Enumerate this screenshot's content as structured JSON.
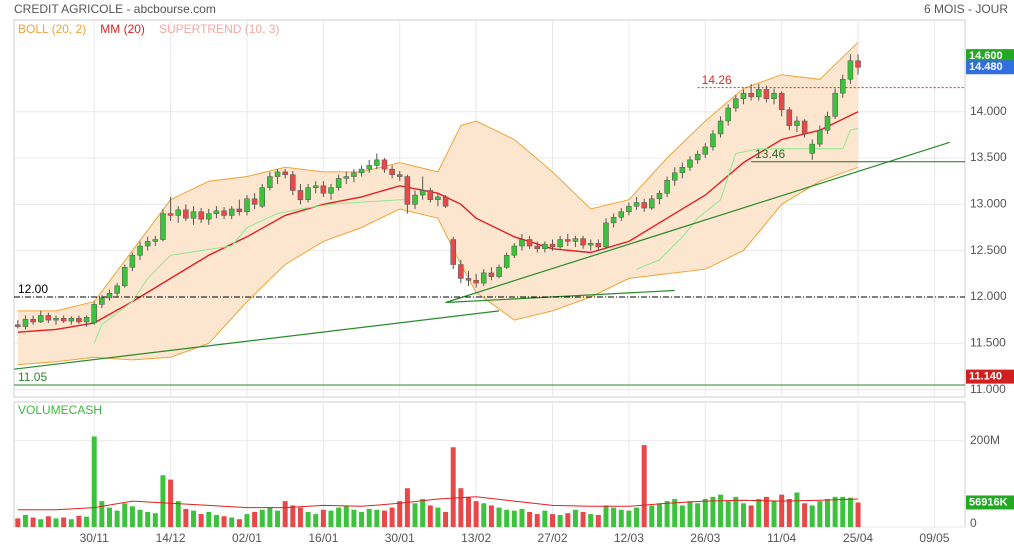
{
  "chart_data": [
    {
      "type": "candlestick",
      "title": "CREDIT AGRICOLE - abcbourse.com",
      "subtitle": "6 MOIS - JOUR",
      "up_color": "#3cc23c",
      "down_color": "#e84848",
      "xlim": [
        -0.5,
        124
      ],
      "xticks": [
        {
          "value": 10,
          "label": "30/11"
        },
        {
          "value": 20,
          "label": "14/12"
        },
        {
          "value": 30,
          "label": "02/01"
        },
        {
          "value": 40,
          "label": "16/01"
        },
        {
          "value": 50,
          "label": "30/01"
        },
        {
          "value": 60,
          "label": "13/02"
        },
        {
          "value": 70,
          "label": "27/02"
        },
        {
          "value": 80,
          "label": "12/03"
        },
        {
          "value": 90,
          "label": "26/03"
        },
        {
          "value": 100,
          "label": "11/04"
        },
        {
          "value": 110,
          "label": "25/04"
        },
        {
          "value": 120,
          "label": "09/05"
        }
      ],
      "ylim": [
        10.92,
        14.99
      ],
      "yticks": [
        {
          "value": 11,
          "label": "11.000"
        },
        {
          "value": 11.5,
          "label": "11.500"
        },
        {
          "value": 12,
          "label": "12.000"
        },
        {
          "value": 12.5,
          "label": "12.500"
        },
        {
          "value": 13,
          "label": "13.000"
        },
        {
          "value": 13.5,
          "label": "13.500"
        },
        {
          "value": 14,
          "label": "14.000"
        }
      ],
      "grid": true,
      "open": [
        11.7,
        11.68,
        11.76,
        11.73,
        11.8,
        11.75,
        11.77,
        11.74,
        11.77,
        11.73,
        11.72,
        11.92,
        11.99,
        12.04,
        12.12,
        12.32,
        12.45,
        12.55,
        12.6,
        12.62,
        12.9,
        12.88,
        12.94,
        12.85,
        12.92,
        12.84,
        12.9,
        12.93,
        12.88,
        12.95,
        12.92,
        13.06,
        12.98,
        13.18,
        13.3,
        13.35,
        13.32,
        13.15,
        13.05,
        13.18,
        13.2,
        13.12,
        13.18,
        13.28,
        13.3,
        13.34,
        13.38,
        13.42,
        13.48,
        13.38,
        13.32,
        13.3,
        13.0,
        13.1,
        13.15,
        13.05,
        13.08,
        12.62,
        12.35,
        12.2,
        12.18,
        12.15,
        12.26,
        12.22,
        12.32,
        12.45,
        12.55,
        12.62,
        12.55,
        12.52,
        12.57,
        12.54,
        12.62,
        12.6,
        12.63,
        12.56,
        12.58,
        12.54,
        12.8,
        12.86,
        12.92,
        12.98,
        13.02,
        12.96,
        13.06,
        13.12,
        13.26,
        13.34,
        13.4,
        13.48,
        13.54,
        13.62,
        13.76,
        13.9,
        14.04,
        14.14,
        14.2,
        14.16,
        14.24,
        14.14,
        14.2,
        14.02,
        13.85,
        13.9,
        13.55,
        13.65,
        13.8,
        13.95,
        14.2,
        14.35,
        14.55
      ],
      "high": [
        11.75,
        11.8,
        11.8,
        11.85,
        11.83,
        11.8,
        11.8,
        11.79,
        11.8,
        11.8,
        11.95,
        12.02,
        12.08,
        12.15,
        12.35,
        12.48,
        12.6,
        12.65,
        12.66,
        12.95,
        13.08,
        12.98,
        13.0,
        12.98,
        12.96,
        12.95,
        12.98,
        12.97,
        12.98,
        13.05,
        13.1,
        13.12,
        13.22,
        13.35,
        13.38,
        13.38,
        13.36,
        13.22,
        13.22,
        13.25,
        13.25,
        13.22,
        13.32,
        13.35,
        13.38,
        13.42,
        13.48,
        13.55,
        13.5,
        13.42,
        13.36,
        13.32,
        13.15,
        13.3,
        13.18,
        13.12,
        13.1,
        12.65,
        12.4,
        12.28,
        12.25,
        12.3,
        12.32,
        12.35,
        12.48,
        12.58,
        12.68,
        12.66,
        12.6,
        12.6,
        12.62,
        12.66,
        12.68,
        12.66,
        12.66,
        12.62,
        12.62,
        12.85,
        12.9,
        12.96,
        13.02,
        13.08,
        13.06,
        13.1,
        13.15,
        13.3,
        13.4,
        13.45,
        13.52,
        13.58,
        13.66,
        13.8,
        13.95,
        14.08,
        14.18,
        14.24,
        14.3,
        14.3,
        14.28,
        14.25,
        14.22,
        14.05,
        13.95,
        13.92,
        13.7,
        13.85,
        14.0,
        14.25,
        14.4,
        14.62,
        14.62
      ],
      "low": [
        11.66,
        11.65,
        11.7,
        11.72,
        11.72,
        11.7,
        11.72,
        11.7,
        11.71,
        11.68,
        11.7,
        11.88,
        11.96,
        12.0,
        12.1,
        12.28,
        12.4,
        12.5,
        12.55,
        12.6,
        12.82,
        12.8,
        12.82,
        12.78,
        12.8,
        12.78,
        12.85,
        12.84,
        12.84,
        12.88,
        12.88,
        12.95,
        12.96,
        13.15,
        13.22,
        13.28,
        13.1,
        13.0,
        13.02,
        13.12,
        13.08,
        13.05,
        13.15,
        13.22,
        13.24,
        13.3,
        13.34,
        13.38,
        13.34,
        13.28,
        13.25,
        12.9,
        12.95,
        13.05,
        13.02,
        12.98,
        12.96,
        12.3,
        12.15,
        12.12,
        12.1,
        12.12,
        12.18,
        12.2,
        12.3,
        12.42,
        12.5,
        12.52,
        12.48,
        12.48,
        12.5,
        12.52,
        12.55,
        12.54,
        12.52,
        12.5,
        12.5,
        12.52,
        12.75,
        12.82,
        12.88,
        12.94,
        12.92,
        12.94,
        13.0,
        13.08,
        13.2,
        13.28,
        13.36,
        13.44,
        13.5,
        13.58,
        13.72,
        13.85,
        14.0,
        14.08,
        14.12,
        14.12,
        14.1,
        14.08,
        13.95,
        13.8,
        13.78,
        13.72,
        13.48,
        13.62,
        13.76,
        13.92,
        14.15,
        14.3,
        14.4
      ],
      "close": [
        11.68,
        11.76,
        11.73,
        11.8,
        11.75,
        11.77,
        11.74,
        11.77,
        11.73,
        11.78,
        11.92,
        11.99,
        12.04,
        12.12,
        12.32,
        12.45,
        12.55,
        12.6,
        12.62,
        12.9,
        12.88,
        12.94,
        12.85,
        12.92,
        12.84,
        12.9,
        12.93,
        12.88,
        12.95,
        12.92,
        13.06,
        13.0,
        13.18,
        13.3,
        13.35,
        13.32,
        13.15,
        13.05,
        13.18,
        13.2,
        13.12,
        13.18,
        13.28,
        13.3,
        13.34,
        13.38,
        13.42,
        13.48,
        13.38,
        13.32,
        13.3,
        13.0,
        13.1,
        13.15,
        13.05,
        13.08,
        12.98,
        12.35,
        12.2,
        12.18,
        12.15,
        12.26,
        12.22,
        12.32,
        12.45,
        12.55,
        12.62,
        12.55,
        12.52,
        12.57,
        12.54,
        12.62,
        12.6,
        12.63,
        12.56,
        12.58,
        12.54,
        12.8,
        12.86,
        12.92,
        12.98,
        13.02,
        12.96,
        13.06,
        13.12,
        13.26,
        13.34,
        13.4,
        13.48,
        13.54,
        13.62,
        13.76,
        13.9,
        14.04,
        14.14,
        14.2,
        14.16,
        14.24,
        14.14,
        14.2,
        14.02,
        13.85,
        13.9,
        13.76,
        13.65,
        13.8,
        13.95,
        14.2,
        14.35,
        14.55,
        14.48
      ],
      "series": [
        {
          "name": "BOLL (20, 2)",
          "color": "#f0a438",
          "fill": "#fde6cf",
          "x": [
            0,
            5,
            10,
            15,
            20,
            25,
            30,
            35,
            40,
            45,
            50,
            55,
            58,
            60,
            65,
            70,
            75,
            80,
            85,
            90,
            95,
            100,
            105,
            110
          ],
          "upper": [
            11.85,
            11.85,
            11.95,
            12.5,
            13.05,
            13.25,
            13.3,
            13.4,
            13.35,
            13.35,
            13.45,
            13.35,
            13.85,
            13.9,
            13.7,
            13.35,
            12.95,
            13.05,
            13.5,
            13.9,
            14.25,
            14.4,
            14.35,
            14.75
          ],
          "lower": [
            11.27,
            11.3,
            11.35,
            11.32,
            11.35,
            11.5,
            11.95,
            12.35,
            12.6,
            12.75,
            12.95,
            12.85,
            12.35,
            12.05,
            11.75,
            11.85,
            12.0,
            12.2,
            12.25,
            12.3,
            12.5,
            13.0,
            13.25,
            13.4
          ]
        },
        {
          "name": "MM (20)",
          "color": "#e02020",
          "x": [
            0,
            5,
            10,
            15,
            20,
            25,
            30,
            35,
            40,
            45,
            50,
            55,
            58,
            60,
            65,
            70,
            75,
            80,
            85,
            90,
            95,
            100,
            105,
            110
          ],
          "values": [
            11.62,
            11.65,
            11.72,
            11.95,
            12.2,
            12.45,
            12.65,
            12.88,
            13.0,
            13.08,
            13.2,
            13.12,
            13.0,
            12.85,
            12.65,
            12.52,
            12.48,
            12.6,
            12.85,
            13.1,
            13.45,
            13.7,
            13.8,
            14.0
          ]
        },
        {
          "name": "SUPERTREND (10, 3)",
          "color": "#f4a8a0",
          "line_color": "#8ee88e",
          "x": [
            10,
            11,
            15,
            17,
            20,
            24,
            28,
            30,
            34,
            37,
            41,
            50,
            51,
            66,
            81,
            84,
            87,
            89,
            92,
            94,
            97,
            108,
            109,
            110
          ],
          "values": [
            11.5,
            11.7,
            11.95,
            12.2,
            12.45,
            12.5,
            12.55,
            12.75,
            12.9,
            12.95,
            13.0,
            13.05,
            13.05,
            null,
            12.3,
            12.4,
            12.65,
            12.85,
            13.05,
            13.55,
            13.6,
            13.6,
            13.8,
            13.82
          ]
        }
      ],
      "trendlines": [
        {
          "color": "#2a8a2a",
          "x": [
            -0.5,
            63
          ],
          "values": [
            11.22,
            11.85
          ]
        },
        {
          "color": "#2a8a2a",
          "x": [
            56,
            86
          ],
          "values": [
            11.94,
            12.07
          ]
        },
        {
          "color": "#2a8a2a",
          "x": [
            56,
            122
          ],
          "values": [
            11.94,
            13.67
          ]
        }
      ],
      "levels": [
        {
          "value": 12,
          "label": "12.00",
          "color": "#000000",
          "style": "dashdot"
        },
        {
          "value": 11.05,
          "label": "11.05",
          "color": "#2a8a2a",
          "style": "solid"
        },
        {
          "value": 14.26,
          "label": "14.26",
          "color": "#d03030",
          "style": "dotted",
          "from": 89
        },
        {
          "value": 13.46,
          "label": "13.46",
          "color": "#2a6a2a",
          "style": "solid",
          "from": 96
        }
      ],
      "tags": [
        {
          "value": 14.6,
          "label": "14.600",
          "color": "#22a822"
        },
        {
          "value": 14.48,
          "label": "14.480",
          "color": "#2f6fe0"
        },
        {
          "value": 11.14,
          "label": "11.140",
          "color": "#d02020"
        }
      ]
    },
    {
      "type": "bar",
      "title": "VOLUMECASH",
      "ylim": [
        0,
        290
      ],
      "yticks": [
        0,
        {
          "value": 200,
          "label": "200M"
        }
      ],
      "values": [
        20,
        28,
        22,
        18,
        25,
        20,
        22,
        18,
        26,
        24,
        210,
        60,
        45,
        38,
        55,
        48,
        40,
        35,
        32,
        120,
        110,
        60,
        42,
        38,
        30,
        35,
        28,
        25,
        22,
        18,
        30,
        35,
        40,
        45,
        38,
        60,
        50,
        45,
        35,
        30,
        40,
        38,
        45,
        50,
        40,
        35,
        42,
        40,
        38,
        45,
        60,
        90,
        55,
        65,
        50,
        45,
        35,
        185,
        90,
        70,
        60,
        55,
        50,
        45,
        40,
        38,
        42,
        35,
        30,
        38,
        30,
        28,
        32,
        40,
        35,
        30,
        28,
        50,
        45,
        40,
        38,
        45,
        190,
        50,
        55,
        60,
        65,
        50,
        60,
        55,
        65,
        70,
        75,
        60,
        70,
        55,
        50,
        65,
        70,
        60,
        75,
        65,
        80,
        55,
        50,
        60,
        65,
        70,
        70,
        68,
        56.916
      ],
      "ma": {
        "color": "#e02020",
        "x": [
          0,
          5,
          10,
          15,
          20,
          25,
          30,
          35,
          40,
          45,
          50,
          55,
          60,
          65,
          70,
          75,
          80,
          85,
          90,
          95,
          100,
          105,
          110
        ],
        "values": [
          40,
          40,
          45,
          60,
          55,
          50,
          45,
          45,
          50,
          48,
          55,
          65,
          70,
          60,
          50,
          48,
          48,
          55,
          60,
          62,
          60,
          62,
          65
        ]
      },
      "tags": [
        {
          "value": 56.916,
          "label": "56916K",
          "color": "#22a822"
        }
      ]
    }
  ]
}
